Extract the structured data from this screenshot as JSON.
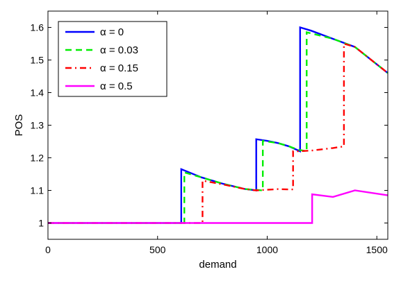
{
  "chart_data": {
    "type": "line",
    "title": "",
    "xlabel": "demand",
    "ylabel": "POS",
    "xlim": [
      0,
      1550
    ],
    "ylim": [
      0.95,
      1.65
    ],
    "xticks": [
      0,
      500,
      1000,
      1500
    ],
    "yticks": [
      1,
      1.1,
      1.2,
      1.3,
      1.4,
      1.5,
      1.6
    ],
    "ytick_labels": [
      "1",
      "1.1",
      "1.2",
      "1.3",
      "1.4",
      "1.5",
      "1.6"
    ],
    "grid": false,
    "legend_position": "top-left",
    "series": [
      {
        "name": "α = 0",
        "color": "#0000ff",
        "style": "solid",
        "x": [
          0,
          608,
          608,
          700,
          800,
          900,
          950,
          950,
          1000,
          1050,
          1100,
          1150,
          1150,
          1200,
          1300,
          1400,
          1550
        ],
        "y": [
          1.0,
          1.0,
          1.165,
          1.14,
          1.12,
          1.104,
          1.1,
          1.257,
          1.252,
          1.245,
          1.235,
          1.22,
          1.6,
          1.59,
          1.565,
          1.54,
          1.46
        ]
      },
      {
        "name": "α = 0.03",
        "color": "#00ee00",
        "style": "dashed",
        "x": [
          0,
          622,
          622,
          700,
          800,
          900,
          980,
          980,
          1050,
          1100,
          1140,
          1180,
          1180,
          1300,
          1400,
          1550
        ],
        "y": [
          1.0,
          1.0,
          1.155,
          1.14,
          1.12,
          1.104,
          1.1,
          1.252,
          1.245,
          1.235,
          1.225,
          1.22,
          1.585,
          1.565,
          1.54,
          1.46
        ]
      },
      {
        "name": "α = 0.15",
        "color": "#ff0000",
        "style": "dashdot",
        "x": [
          0,
          705,
          705,
          800,
          900,
          950,
          1000,
          1050,
          1100,
          1118,
          1118,
          1140,
          1200,
          1300,
          1350,
          1350,
          1400,
          1550
        ],
        "y": [
          1.0,
          1.0,
          1.13,
          1.118,
          1.104,
          1.1,
          1.102,
          1.104,
          1.103,
          1.103,
          1.22,
          1.22,
          1.222,
          1.23,
          1.235,
          1.55,
          1.54,
          1.46
        ]
      },
      {
        "name": "α = 0.5",
        "color": "#ff00ff",
        "style": "solid",
        "x": [
          0,
          1205,
          1205,
          1300,
          1400,
          1550
        ],
        "y": [
          1.0,
          1.0,
          1.088,
          1.08,
          1.1,
          1.085
        ]
      }
    ]
  }
}
